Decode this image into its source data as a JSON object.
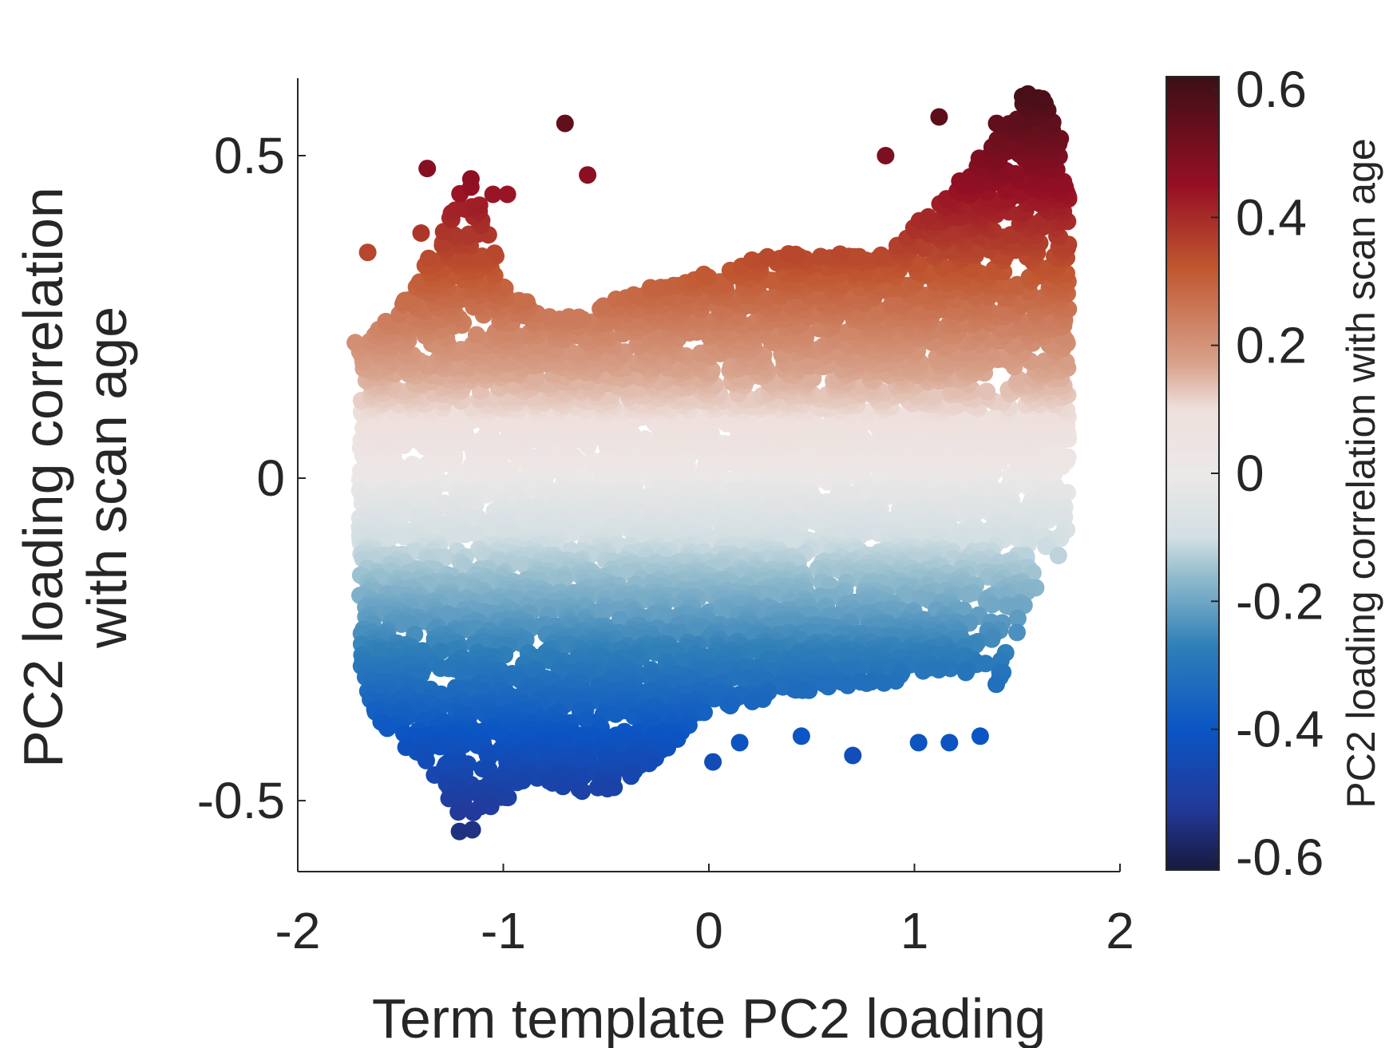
{
  "chart_data": {
    "type": "scatter",
    "xlabel": "Term template PC2 loading",
    "ylabel_lines": [
      "PC2 loading correlation",
      "with scan age"
    ],
    "xlim": [
      -2,
      2
    ],
    "ylim": [
      -0.61,
      0.62
    ],
    "xticks": [
      -2,
      -1,
      0,
      1,
      2
    ],
    "xtick_labels": [
      "-2",
      "-1",
      "0",
      "1",
      "2"
    ],
    "yticks": [
      -0.5,
      0,
      0.5
    ],
    "ytick_labels": [
      "-0.5",
      "0",
      "0.5"
    ],
    "grid": false,
    "marker": "filled-circle",
    "point_count_approx": 6500,
    "color_variable": "y",
    "colorbar": {
      "label": "PC2 loading correlation with scan age",
      "clim": [
        -0.62,
        0.62
      ],
      "ticks": [
        -0.6,
        -0.4,
        -0.2,
        0,
        0.2,
        0.4,
        0.6
      ],
      "tick_labels": [
        "-0.6",
        "-0.4",
        "-0.2",
        "0",
        "0.2",
        "0.4",
        "0.6"
      ],
      "colormap": [
        {
          "v": -0.62,
          "color": "#17193f"
        },
        {
          "v": -0.52,
          "color": "#223a9a"
        },
        {
          "v": -0.4,
          "color": "#0b55c4"
        },
        {
          "v": -0.27,
          "color": "#2f7fb8"
        },
        {
          "v": -0.16,
          "color": "#93bccd"
        },
        {
          "v": -0.1,
          "color": "#d3dfe3"
        },
        {
          "v": 0.0,
          "color": "#ece8e8"
        },
        {
          "v": 0.1,
          "color": "#eee0dd"
        },
        {
          "v": 0.17,
          "color": "#d8a38c"
        },
        {
          "v": 0.32,
          "color": "#c05730"
        },
        {
          "v": 0.45,
          "color": "#960f24"
        },
        {
          "v": 0.62,
          "color": "#3c0f16"
        }
      ]
    },
    "envelope": {
      "note": "distribution bounds (y range as a function of x) used to recreate the dense cloud",
      "x": [
        -1.7,
        -1.6,
        -1.5,
        -1.4,
        -1.3,
        -1.2,
        -1.15,
        -1.1,
        -1.0,
        -0.9,
        -0.8,
        -0.6,
        -0.4,
        -0.2,
        0.0,
        0.2,
        0.4,
        0.6,
        0.8,
        0.9,
        1.0,
        1.1,
        1.2,
        1.3,
        1.4,
        1.5,
        1.55,
        1.6,
        1.7,
        1.75
      ],
      "y_min": [
        -0.32,
        -0.38,
        -0.41,
        -0.44,
        -0.48,
        -0.58,
        -0.6,
        -0.52,
        -0.5,
        -0.48,
        -0.47,
        -0.49,
        -0.48,
        -0.42,
        -0.36,
        -0.35,
        -0.33,
        -0.33,
        -0.32,
        -0.32,
        -0.3,
        -0.3,
        -0.3,
        -0.31,
        -0.32,
        -0.28,
        -0.18,
        -0.12,
        -0.1,
        -0.08
      ],
      "y_max": [
        0.2,
        0.24,
        0.27,
        0.32,
        0.38,
        0.45,
        0.47,
        0.42,
        0.3,
        0.28,
        0.25,
        0.25,
        0.29,
        0.3,
        0.32,
        0.34,
        0.35,
        0.35,
        0.34,
        0.36,
        0.39,
        0.43,
        0.46,
        0.49,
        0.53,
        0.58,
        0.61,
        0.6,
        0.55,
        0.45
      ]
    },
    "outliers": [
      {
        "x": -1.37,
        "y": 0.48
      },
      {
        "x": -0.7,
        "y": 0.55
      },
      {
        "x": -0.59,
        "y": 0.47
      },
      {
        "x": -1.66,
        "y": 0.35
      },
      {
        "x": -1.4,
        "y": 0.38
      },
      {
        "x": -1.05,
        "y": 0.44
      },
      {
        "x": -0.98,
        "y": 0.44
      },
      {
        "x": 0.86,
        "y": 0.5
      },
      {
        "x": 1.12,
        "y": 0.56
      },
      {
        "x": 1.4,
        "y": 0.55
      },
      {
        "x": -1.72,
        "y": 0.21
      },
      {
        "x": -1.68,
        "y": 0.17
      },
      {
        "x": 0.02,
        "y": -0.44
      },
      {
        "x": 0.15,
        "y": -0.41
      },
      {
        "x": 0.45,
        "y": -0.4
      },
      {
        "x": 0.7,
        "y": -0.43
      },
      {
        "x": 1.02,
        "y": -0.41
      },
      {
        "x": 1.17,
        "y": -0.41
      },
      {
        "x": 1.32,
        "y": -0.4
      },
      {
        "x": 1.59,
        "y": -0.17
      },
      {
        "x": 1.7,
        "y": -0.12
      }
    ]
  }
}
